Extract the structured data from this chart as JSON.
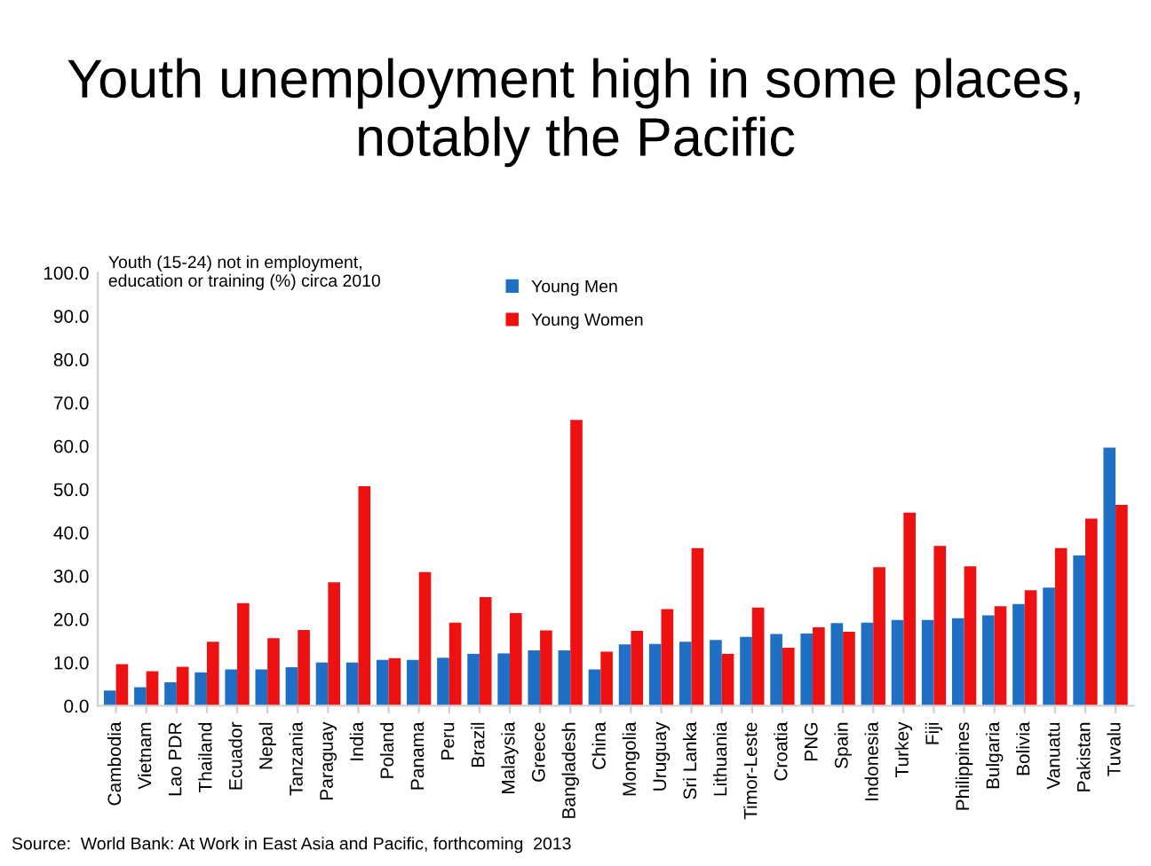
{
  "chart_data": {
    "type": "bar",
    "title": "Youth unemployment high in some places, notably the Pacific",
    "subtitle": "Youth (15-24) not in employment,\neducation or training (%) circa 2010",
    "categories": [
      "Cambodia",
      "Vietnam",
      "Lao PDR",
      "Thailand",
      "Ecuador",
      "Nepal",
      "Tanzania",
      "Paraguay",
      "India",
      "Poland",
      "Panama",
      "Peru",
      "Brazil",
      "Malaysia",
      "Greece",
      "Bangladesh",
      "China",
      "Mongolia",
      "Uruguay",
      "Sri Lanka",
      "Lithuania",
      "Timor-Leste",
      "Croatia",
      "PNG",
      "Spain",
      "Indonesia",
      "Turkey",
      "Fiji",
      "Philippines",
      "Bulgaria",
      "Bolivia",
      "Vanuatu",
      "Pakistan",
      "Tuvalu"
    ],
    "series": [
      {
        "name": "Young Men",
        "color": "#1f6fc5",
        "values": [
          3.5,
          4.3,
          5.4,
          7.7,
          8.4,
          8.4,
          8.9,
          10.0,
          10.0,
          10.6,
          10.6,
          11.1,
          12.0,
          12.1,
          12.8,
          12.8,
          8.4,
          14.2,
          14.3,
          14.8,
          15.2,
          15.9,
          16.6,
          16.7,
          19.1,
          19.2,
          19.8,
          19.8,
          20.2,
          20.9,
          23.5,
          27.3,
          34.7,
          59.6
        ]
      },
      {
        "name": "Young Women",
        "color": "#ee1111",
        "values": [
          9.6,
          8.0,
          9.0,
          14.8,
          23.7,
          15.6,
          17.5,
          28.5,
          50.7,
          11.0,
          30.9,
          19.2,
          25.1,
          21.4,
          17.4,
          66.0,
          12.5,
          17.3,
          22.3,
          36.4,
          12.0,
          22.7,
          13.4,
          18.1,
          17.1,
          32.0,
          44.6,
          36.9,
          32.2,
          23.0,
          26.7,
          36.4,
          43.2,
          46.4
        ]
      }
    ],
    "ylim": [
      0,
      100
    ],
    "yticks": [
      {
        "value": 0,
        "label": "0.0"
      },
      {
        "value": 10,
        "label": "10.0"
      },
      {
        "value": 20,
        "label": "20.0"
      },
      {
        "value": 30,
        "label": "30.0"
      },
      {
        "value": 40,
        "label": "40.0"
      },
      {
        "value": 50,
        "label": "50.0"
      },
      {
        "value": 60,
        "label": "60.0"
      },
      {
        "value": 70,
        "label": "70.0"
      },
      {
        "value": 80,
        "label": "80.0"
      },
      {
        "value": 90,
        "label": "90.0"
      },
      {
        "value": 100,
        "label": "100.0"
      }
    ],
    "grid": false,
    "legend": "top",
    "annotations": [
      "Source:  World Bank: At Work in East Asia and Pacific, forthcoming  2013"
    ]
  }
}
